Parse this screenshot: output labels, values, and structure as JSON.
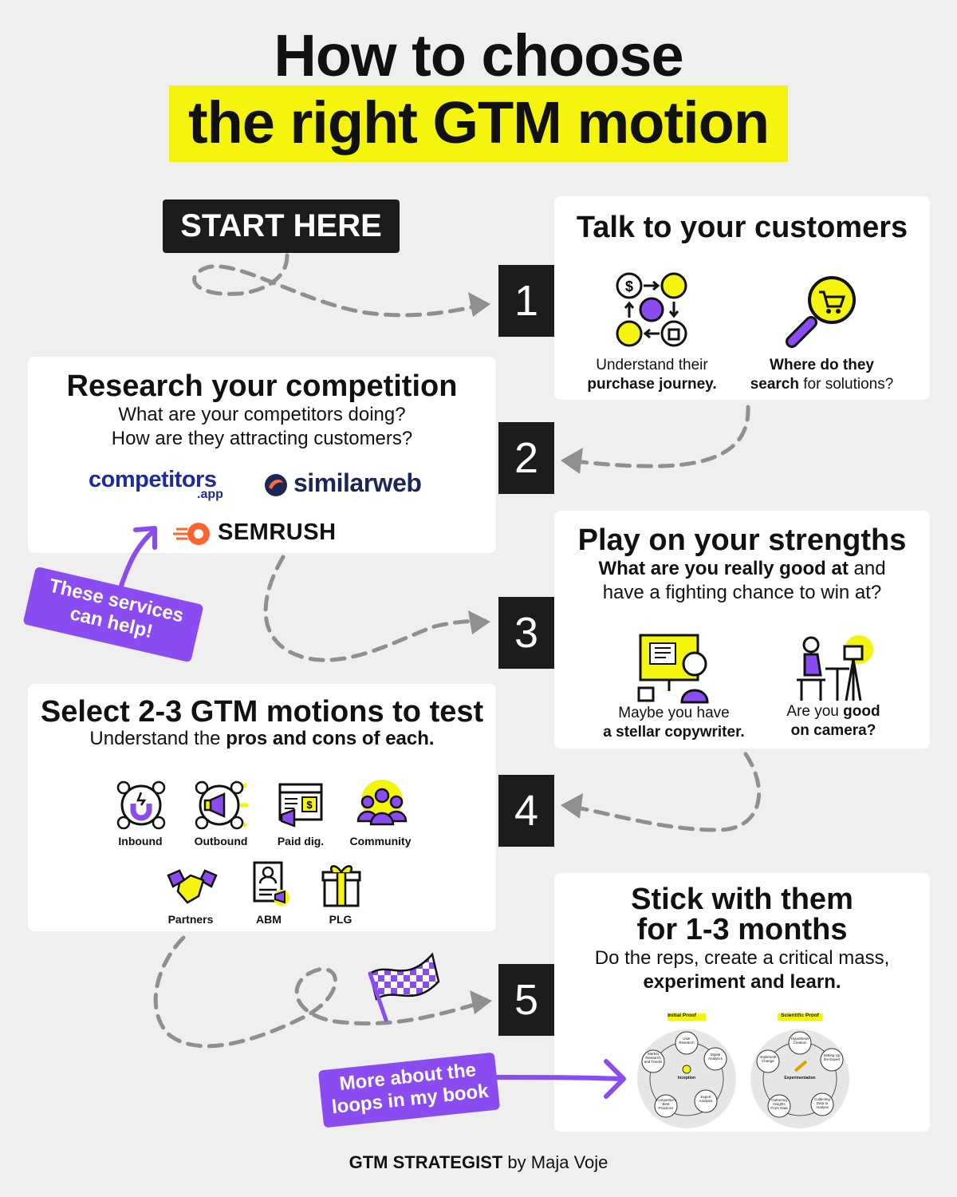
{
  "header": {
    "line1": "How to choose",
    "line2": "the right GTM motion"
  },
  "start_label": "START HERE",
  "steps": [
    {
      "number": "1",
      "title": "Talk to your customers",
      "items": [
        {
          "line1": "Understand their",
          "line2": "purchase journey."
        },
        {
          "line1_bold": "Where do they",
          "line2_bold": "search",
          "line2_rest": " for solutions?"
        }
      ]
    },
    {
      "number": "2",
      "title": "Research your competition",
      "sub1": "What are your competitors doing?",
      "sub2": "How are they attracting customers?",
      "logos": {
        "competitors": "competitors",
        "competitors_sub": ".app",
        "similarweb": "similarweb",
        "semrush": "SEMRUSH"
      }
    },
    {
      "number": "3",
      "title": "Play on your strengths",
      "sub1_bold": "What are you really good at",
      "sub1_rest": " and",
      "sub2": "have a fighting chance to win at?",
      "items": [
        {
          "line1": "Maybe you have",
          "line2_bold": "a stellar copywriter."
        },
        {
          "line1_a": "Are you ",
          "line1_bold": "good",
          "line2_bold": "on camera?"
        }
      ]
    },
    {
      "number": "4",
      "title": "Select 2-3 GTM motions to test",
      "sub_a": "Understand the ",
      "sub_bold": "pros and cons of each.",
      "motions": [
        "Inbound",
        "Outbound",
        "Paid dig.",
        "Community",
        "Partners",
        "ABM",
        "PLG"
      ]
    },
    {
      "number": "5",
      "title1": "Stick with them",
      "title2": "for 1-3 months",
      "sub1": "Do the reps, create a critical mass,",
      "sub2_bold": "experiment and learn.",
      "loops": {
        "left_title": "Initial Proof",
        "right_title": "Scientific Proof",
        "left_center": "Inception",
        "right_center": "Experimentation",
        "left_nodes": [
          "User Research",
          "Digital Analytics",
          "Expert Analysis",
          "Competitor's Best Practices",
          "Market Research and Trends"
        ],
        "right_nodes": [
          "Hypothesis Creation",
          "Setting Up the Expert",
          "Collecting Data to Analyse",
          "Gathering Insights From Data",
          "Implement Change"
        ]
      }
    }
  ],
  "callouts": {
    "services_1": "These services",
    "services_2": "can help!",
    "book_1": "More about the",
    "book_2": "loops in my book"
  },
  "footer": {
    "brand": "GTM STRATEGIST",
    "by": " by Maja Voje"
  },
  "colors": {
    "yellow": "#f4f40e",
    "purple": "#8a4cf0",
    "dark": "#1c1c1c",
    "bg": "#efefef"
  }
}
